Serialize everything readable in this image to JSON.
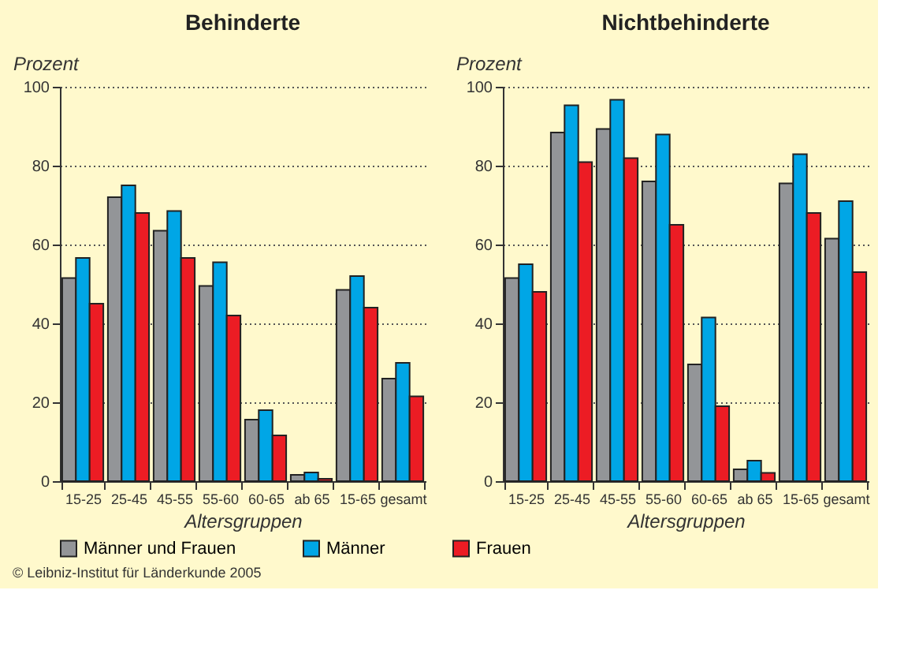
{
  "chart_data": [
    {
      "type": "bar",
      "title": "Behinderte",
      "ylabel": "Prozent",
      "xlabel": "Altersgruppen",
      "categories": [
        "15-25",
        "25-45",
        "45-55",
        "55-60",
        "60-65",
        "ab 65",
        "15-65",
        "gesamt"
      ],
      "series": [
        {
          "name": "Männer und Frauen",
          "color": "#939598",
          "values": [
            51.5,
            72,
            63.5,
            49.5,
            15.6,
            1.6,
            48.5,
            26
          ]
        },
        {
          "name": "Männer",
          "color": "#00a6e6",
          "values": [
            56.6,
            75,
            68.5,
            55.5,
            18,
            2.2,
            52,
            30
          ]
        },
        {
          "name": "Frauen",
          "color": "#ec1c24",
          "values": [
            45,
            68,
            56.6,
            42,
            11.6,
            0.6,
            44,
            21.5
          ]
        }
      ],
      "ylim": [
        0,
        100
      ],
      "yticks": [
        0,
        20,
        40,
        60,
        80,
        100
      ],
      "grid": "y",
      "legend": "bottom",
      "annotations": [
        "© Leibniz-Institut für Länderkunde 2005"
      ]
    },
    {
      "type": "bar",
      "title": "Nichtbehinderte",
      "ylabel": "Prozent",
      "xlabel": "Altersgruppen",
      "categories": [
        "15-25",
        "25-45",
        "45-55",
        "55-60",
        "60-65",
        "ab 65",
        "15-65",
        "gesamt"
      ],
      "series": [
        {
          "name": "Männer und Frauen",
          "color": "#939598",
          "values": [
            51.5,
            88.4,
            89.3,
            76,
            29.6,
            3,
            75.5,
            61.5
          ]
        },
        {
          "name": "Männer",
          "color": "#00a6e6",
          "values": [
            55,
            95.3,
            96.7,
            87.9,
            41.5,
            5.2,
            82.9,
            71
          ]
        },
        {
          "name": "Frauen",
          "color": "#ec1c24",
          "values": [
            48,
            80.9,
            81.9,
            65,
            19,
            2.1,
            68,
            53
          ]
        }
      ],
      "ylim": [
        0,
        100
      ],
      "yticks": [
        0,
        20,
        40,
        60,
        80,
        100
      ],
      "grid": "y",
      "legend": "bottom"
    }
  ]
}
